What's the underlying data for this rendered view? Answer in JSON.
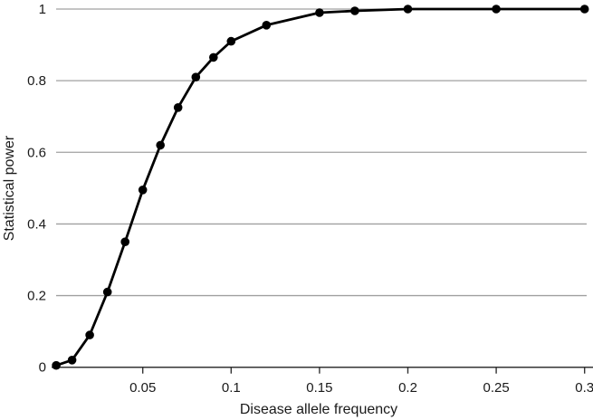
{
  "chart_data": {
    "type": "line",
    "title": "",
    "xlabel": "Disease allele frequency",
    "ylabel": "Statistical power",
    "x": [
      0.001,
      0.01,
      0.02,
      0.03,
      0.04,
      0.05,
      0.06,
      0.07,
      0.08,
      0.09,
      0.1,
      0.12,
      0.15,
      0.17,
      0.2,
      0.25,
      0.3
    ],
    "series": [
      {
        "name": "Statistical power",
        "values": [
          0.005,
          0.02,
          0.09,
          0.21,
          0.35,
          0.495,
          0.62,
          0.725,
          0.81,
          0.865,
          0.91,
          0.955,
          0.99,
          0.995,
          1.0,
          1.0,
          1.0
        ]
      }
    ],
    "xlim": [
      0,
      0.305
    ],
    "ylim": [
      0,
      1
    ],
    "x_ticks": [
      0.05,
      0.1,
      0.15,
      0.2,
      0.25,
      0.3
    ],
    "x_tick_labels": [
      "0.05",
      "0.1",
      "0.15",
      "0.2",
      "0.25",
      "0.3"
    ],
    "y_ticks": [
      0,
      0.2,
      0.4,
      0.6,
      0.8,
      1
    ],
    "y_tick_labels": [
      "0",
      "0.2",
      "0.4",
      "0.6",
      "0.8",
      "1"
    ],
    "grid": "horizontal",
    "legend": "none",
    "marker": "filled-circle",
    "colors": {
      "line": "#000000",
      "marker": "#000000",
      "gridline": "#a0a0a0",
      "axis": "#333333",
      "text": "#1a1a1a",
      "background": "#ffffff"
    }
  }
}
